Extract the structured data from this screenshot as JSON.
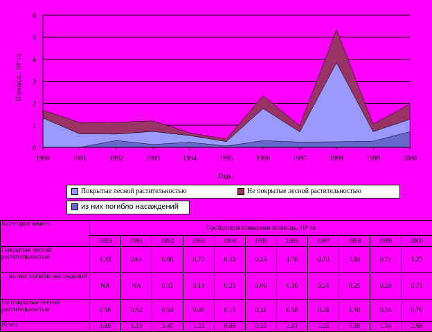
{
  "chart_data": {
    "type": "area",
    "stacked": true,
    "x": [
      1990,
      1991,
      1992,
      1993,
      1994,
      1995,
      1996,
      1997,
      1998,
      1999,
      2000
    ],
    "xlabel": "Годы",
    "ylabel": "Площадь, 10⁶ га",
    "ylim": [
      0,
      6
    ],
    "yticks": [
      0,
      1,
      2,
      3,
      4,
      5,
      6
    ],
    "grid": true,
    "legend_position": "bottom",
    "series": [
      {
        "name": "Покрытые лесной растительностью",
        "color": "#9999ff",
        "values": [
          1.33,
          0.61,
          0.6,
          0.72,
          0.53,
          0.26,
          1.76,
          0.7,
          3.84,
          0.71,
          1.27
        ]
      },
      {
        "name": "Не покрытые лесной растительностью",
        "color": "#993366",
        "values": [
          0.36,
          0.52,
          0.54,
          0.48,
          0.13,
          0.11,
          0.58,
          0.28,
          1.5,
          0.34,
          0.7
        ]
      },
      {
        "name": "из них погибло насаждений",
        "color": "#6666cc",
        "overlay": true,
        "values": [
          0,
          0,
          0.31,
          0.13,
          0.23,
          0.06,
          0.3,
          0.24,
          0.25,
          0.28,
          0.71
        ]
      }
    ]
  },
  "table": {
    "category_header": "Категория земель",
    "span_header": "Пройденная пожарами площадь, 10⁶ га",
    "years": [
      "1990",
      "1991",
      "1992",
      "1993",
      "1994",
      "1995",
      "1996",
      "1997",
      "1998",
      "1999",
      "2000"
    ],
    "rows": [
      {
        "label": "Покрытые лесной растительностью",
        "indent": false,
        "values": [
          "1.33",
          "0.61",
          "0.60",
          "0.72",
          "0.53",
          "0.26",
          "1.76",
          "0.70",
          "3.84",
          "0.71",
          "1.27"
        ]
      },
      {
        "label": "из них погибло насаждений",
        "indent": true,
        "values": [
          "NA",
          "NA",
          "0.31",
          "0.13",
          "0.23",
          "0.06",
          "0.30",
          "0.24",
          "0.25",
          "0.28",
          "0.71"
        ]
      },
      {
        "label": "Не покрытые лесной растительностью",
        "indent": false,
        "values": [
          "0.36",
          "0.52",
          "0.54",
          "0.48",
          "0.13",
          "0.11",
          "0.58",
          "0.28",
          "1.50",
          "0.34",
          "0.70"
        ]
      },
      {
        "label": "Всего",
        "indent": false,
        "values": [
          "1.69",
          "1.13",
          "1.45",
          "1.33",
          "0.65",
          "0.32",
          "2.61",
          "1.22",
          "5.59",
          "1.34",
          "2.68"
        ]
      }
    ]
  }
}
